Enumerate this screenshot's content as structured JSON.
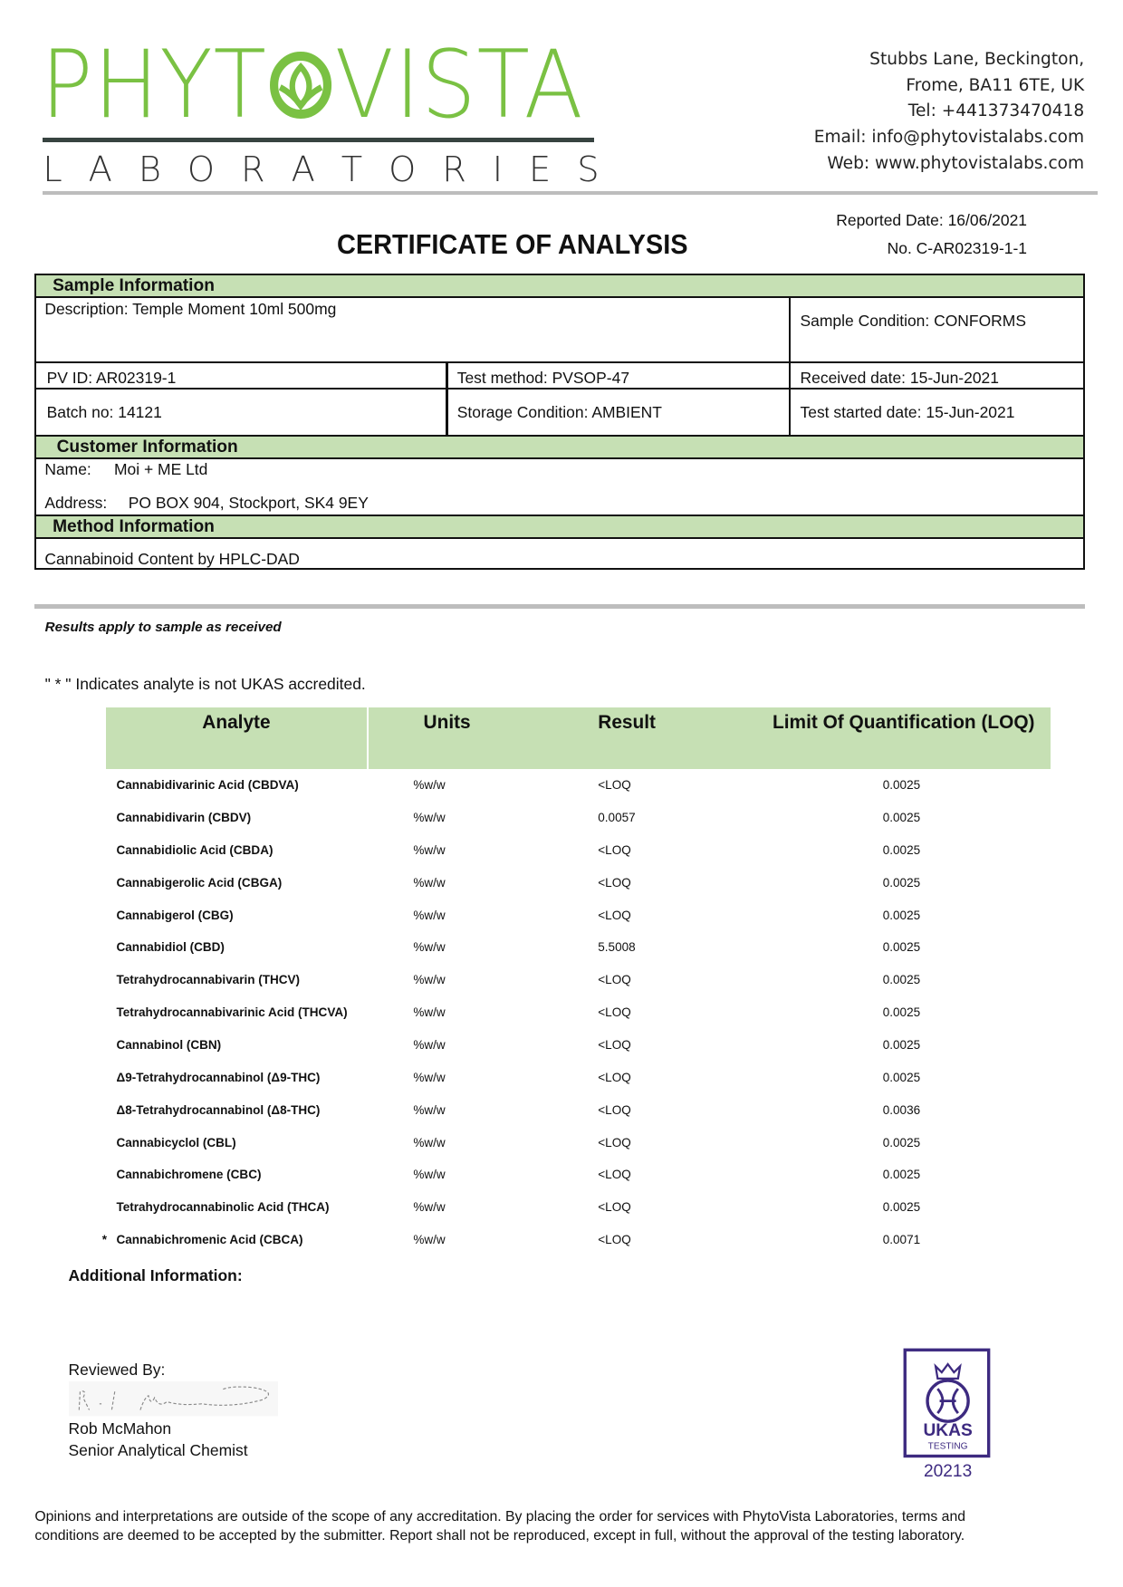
{
  "header": {
    "logo_main": "PHYTOVISTA",
    "logo_sub": [
      "L",
      "A",
      "B",
      "O",
      "R",
      "A",
      "T",
      "O",
      "R",
      "I",
      "E",
      "S"
    ],
    "contact": [
      "Stubbs Lane, Beckington,",
      "Frome, BA11 6TE, UK",
      "Tel: +441373470418",
      "Email: info@phytovistalabs.com",
      "Web: www.phytovistalabs.com"
    ],
    "reported_date": "Reported Date: 16/06/2021",
    "cert_no": "No. C-AR02319-1-1",
    "title": "CERTIFICATE OF ANALYSIS",
    "brand_color": "#7ac143"
  },
  "sample": {
    "heading": "Sample Information",
    "description": "Description: Temple Moment 10ml 500mg",
    "condition": "Sample Condition: CONFORMS",
    "pv_id": "PV ID: AR02319-1",
    "test_method": "Test method: PVSOP-47",
    "received": "Received date: 15-Jun-2021",
    "batch": "Batch no: 14121",
    "storage": "Storage Condition: AMBIENT",
    "test_started": "Test started date: 15-Jun-2021"
  },
  "customer": {
    "heading": "Customer Information",
    "name_label": "Name:",
    "name": "Moi + ME Ltd",
    "address_label": "Address:",
    "address": "PO BOX 904, Stockport, SK4 9EY"
  },
  "method": {
    "heading": "Method Information",
    "text": "Cannabinoid Content by HPLC-DAD"
  },
  "results_note": "Results apply to sample as received",
  "ukas_note": "\" * \" Indicates analyte is not UKAS accredited.",
  "table": {
    "headers": [
      "Analyte",
      "Units",
      "Result",
      "Limit Of Quantification (LOQ)"
    ],
    "rows": [
      {
        "star": "",
        "analyte": "Cannabidivarinic Acid (CBDVA)",
        "units": "%w/w",
        "result": "<LOQ",
        "loq": "0.0025"
      },
      {
        "star": "",
        "analyte": "Cannabidivarin (CBDV)",
        "units": "%w/w",
        "result": "0.0057",
        "loq": "0.0025"
      },
      {
        "star": "",
        "analyte": "Cannabidiolic Acid (CBDA)",
        "units": "%w/w",
        "result": "<LOQ",
        "loq": "0.0025"
      },
      {
        "star": "",
        "analyte": "Cannabigerolic Acid (CBGA)",
        "units": "%w/w",
        "result": "<LOQ",
        "loq": "0.0025"
      },
      {
        "star": "",
        "analyte": "Cannabigerol (CBG)",
        "units": "%w/w",
        "result": "<LOQ",
        "loq": "0.0025"
      },
      {
        "star": "",
        "analyte": "Cannabidiol (CBD)",
        "units": "%w/w",
        "result": "5.5008",
        "loq": "0.0025"
      },
      {
        "star": "",
        "analyte": "Tetrahydrocannabivarin (THCV)",
        "units": "%w/w",
        "result": "<LOQ",
        "loq": "0.0025"
      },
      {
        "star": "",
        "analyte": "Tetrahydrocannabivarinic Acid (THCVA)",
        "units": "%w/w",
        "result": "<LOQ",
        "loq": "0.0025"
      },
      {
        "star": "",
        "analyte": "Cannabinol (CBN)",
        "units": "%w/w",
        "result": "<LOQ",
        "loq": "0.0025"
      },
      {
        "star": "",
        "analyte": "Δ9-Tetrahydrocannabinol (Δ9-THC)",
        "units": "%w/w",
        "result": "<LOQ",
        "loq": "0.0025"
      },
      {
        "star": "",
        "analyte": "Δ8-Tetrahydrocannabinol (Δ8-THC)",
        "units": "%w/w",
        "result": "<LOQ",
        "loq": "0.0036"
      },
      {
        "star": "",
        "analyte": "Cannabicyclol (CBL)",
        "units": "%w/w",
        "result": "<LOQ",
        "loq": "0.0025"
      },
      {
        "star": "",
        "analyte": "Cannabichromene (CBC)",
        "units": "%w/w",
        "result": "<LOQ",
        "loq": "0.0025"
      },
      {
        "star": "",
        "analyte": "Tetrahydrocannabinolic Acid (THCA)",
        "units": "%w/w",
        "result": "<LOQ",
        "loq": "0.0025"
      },
      {
        "star": "*",
        "analyte": "Cannabichromenic Acid (CBCA)",
        "units": "%w/w",
        "result": "<LOQ",
        "loq": "0.0071"
      }
    ]
  },
  "additional_info": "Additional Information:",
  "reviewer": {
    "label": "Reviewed By:",
    "name": "Rob McMahon",
    "role": "Senior Analytical Chemist"
  },
  "ukas": {
    "text": "UKAS",
    "sub": "TESTING",
    "number": "20213",
    "color": "#3d2a80"
  },
  "footer": "Opinions and interpretations are outside of the scope of any accreditation. By placing the order for services with PhytoVista Laboratories, terms and conditions are deemed to be accepted by the submitter. Report shall not be reproduced, except in full, without the approval of the testing laboratory."
}
